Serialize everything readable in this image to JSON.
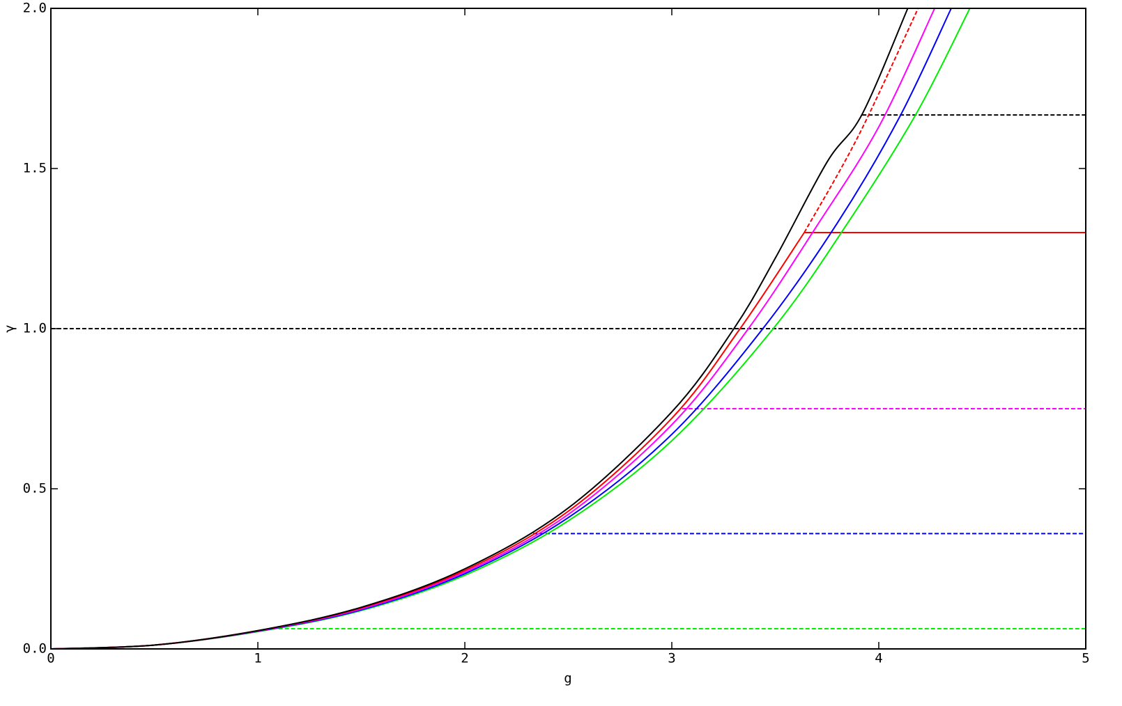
{
  "chart_data": {
    "type": "line",
    "xlabel": "g",
    "ylabel": "γ",
    "xlim": [
      0,
      5
    ],
    "ylim": [
      0,
      2
    ],
    "xticks": [
      0,
      1,
      2,
      3,
      4,
      5
    ],
    "yticks": [
      {
        "value": 0,
        "label": "0.0"
      },
      {
        "value": 0.5,
        "label": "0.5"
      },
      {
        "value": 1,
        "label": "1.0"
      },
      {
        "value": 1.5,
        "label": "1.5"
      },
      {
        "value": 2,
        "label": "2.0"
      }
    ],
    "series": [
      {
        "color": "#000000",
        "dash": true,
        "x": [
          0,
          5
        ],
        "values": [
          1,
          1
        ]
      },
      {
        "color": "#000000",
        "dash": true,
        "x": [
          3.92,
          5
        ],
        "values": [
          1.667,
          1.667
        ]
      },
      {
        "color": "#ff00ff",
        "dash": true,
        "x": [
          3.05,
          5
        ],
        "values": [
          0.75,
          0.75
        ]
      },
      {
        "color": "#0000ff",
        "dash": true,
        "x": [
          2.33,
          5
        ],
        "values": [
          0.36,
          0.36
        ]
      },
      {
        "color": "#00ee00",
        "dash": true,
        "x": [
          1.1,
          5
        ],
        "values": [
          0.063,
          0.063
        ]
      },
      {
        "color": "#ff0000",
        "dash": true,
        "x": [
          3.64,
          3.9,
          4.19
        ],
        "values": [
          1.3,
          1.6,
          2.0
        ]
      },
      {
        "color": "#ff0000",
        "dash": false,
        "x": [
          3.64,
          5
        ],
        "values": [
          1.3,
          1.3
        ]
      },
      {
        "color": "#00ee00",
        "dash": false,
        "x": [
          0,
          0.5,
          1,
          1.5,
          2,
          2.5,
          3,
          3.49,
          3.85,
          4.18,
          4.44
        ],
        "values": [
          0,
          0.012,
          0.054,
          0.12,
          0.23,
          0.4,
          0.65,
          1.0,
          1.33,
          1.67,
          2.0
        ]
      },
      {
        "color": "#0000ff",
        "dash": false,
        "x": [
          0,
          0.5,
          1,
          1.5,
          2,
          2.5,
          3,
          3.44,
          3.8,
          4.1,
          4.35
        ],
        "values": [
          0,
          0.012,
          0.055,
          0.122,
          0.235,
          0.41,
          0.67,
          1.0,
          1.33,
          1.66,
          2.0
        ]
      },
      {
        "color": "#ff00ff",
        "dash": false,
        "x": [
          0,
          0.5,
          1,
          1.5,
          2,
          2.5,
          3,
          3.37,
          3.7,
          4.0,
          4.27
        ],
        "values": [
          0,
          0.012,
          0.056,
          0.125,
          0.24,
          0.42,
          0.7,
          1.0,
          1.32,
          1.63,
          2.0
        ]
      },
      {
        "color": "#ff0000",
        "dash": false,
        "x": [
          0,
          0.5,
          1,
          1.5,
          2,
          2.5,
          3,
          3.33,
          3.64
        ],
        "values": [
          0,
          0.012,
          0.057,
          0.128,
          0.245,
          0.43,
          0.72,
          1.0,
          1.3
        ]
      },
      {
        "color": "#000000",
        "dash": false,
        "x": [
          0,
          0.5,
          1,
          1.5,
          2,
          2.5,
          3,
          3.3,
          3.5,
          3.75,
          3.92,
          4.14
        ],
        "values": [
          0,
          0.012,
          0.057,
          0.13,
          0.25,
          0.44,
          0.74,
          1.0,
          1.22,
          1.52,
          1.67,
          2.0
        ]
      }
    ]
  }
}
